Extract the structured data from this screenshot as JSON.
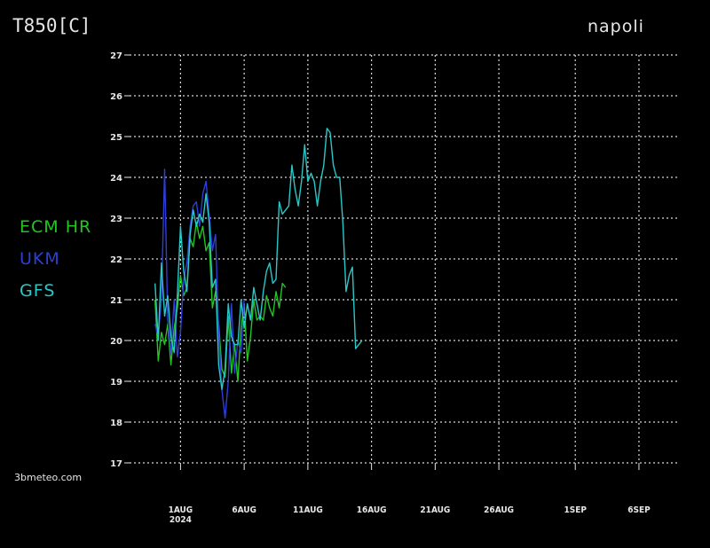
{
  "header": {
    "title": "T850[C]",
    "location": "napoli"
  },
  "credit": "3bmeteo.com",
  "colors": {
    "background": "#000000",
    "ECM HR": "#22c522",
    "UKM": "#2d3fd8",
    "GFS": "#2ac7c7"
  },
  "chart_data": {
    "type": "line",
    "title": "T850[C]",
    "subtitle": "napoli",
    "ylim": [
      17,
      27
    ],
    "yticks": [
      17,
      18,
      19,
      20,
      21,
      22,
      23,
      24,
      25,
      26,
      27
    ],
    "xlim": [
      "2024-07-28",
      "2024-09-09"
    ],
    "xticks": [
      {
        "date": "2024-08-01",
        "label": "1AUG",
        "sublabel": "2024"
      },
      {
        "date": "2024-08-06",
        "label": "6AUG",
        "sublabel": ""
      },
      {
        "date": "2024-08-11",
        "label": "11AUG",
        "sublabel": ""
      },
      {
        "date": "2024-08-16",
        "label": "16AUG",
        "sublabel": ""
      },
      {
        "date": "2024-08-21",
        "label": "21AUG",
        "sublabel": ""
      },
      {
        "date": "2024-08-26",
        "label": "26AUG",
        "sublabel": ""
      },
      {
        "date": "2024-09-01",
        "label": "1SEP",
        "sublabel": ""
      },
      {
        "date": "2024-09-06",
        "label": "6SEP",
        "sublabel": ""
      }
    ],
    "grid": true,
    "legend_position": "left",
    "series": [
      {
        "name": "ECM HR",
        "color": "#22c522",
        "x": [
          "2024-07-30 00:00",
          "2024-07-30 06:00",
          "2024-07-30 12:00",
          "2024-07-30 18:00",
          "2024-07-31 00:00",
          "2024-07-31 06:00",
          "2024-07-31 12:00",
          "2024-07-31 18:00",
          "2024-08-01 00:00",
          "2024-08-01 06:00",
          "2024-08-01 12:00",
          "2024-08-01 18:00",
          "2024-08-02 00:00",
          "2024-08-02 06:00",
          "2024-08-02 12:00",
          "2024-08-02 18:00",
          "2024-08-03 00:00",
          "2024-08-03 06:00",
          "2024-08-03 12:00",
          "2024-08-03 18:00",
          "2024-08-04 00:00",
          "2024-08-04 06:00",
          "2024-08-04 12:00",
          "2024-08-04 18:00",
          "2024-08-05 00:00",
          "2024-08-05 06:00",
          "2024-08-05 12:00",
          "2024-08-05 18:00",
          "2024-08-06 00:00",
          "2024-08-06 06:00",
          "2024-08-06 12:00",
          "2024-08-06 18:00",
          "2024-08-07 00:00",
          "2024-08-07 06:00",
          "2024-08-07 12:00",
          "2024-08-07 18:00",
          "2024-08-08 00:00",
          "2024-08-08 06:00",
          "2024-08-08 12:00",
          "2024-08-08 18:00",
          "2024-08-09 00:00",
          "2024-08-09 06:00"
        ],
        "y": [
          21.0,
          19.5,
          20.2,
          19.9,
          20.4,
          19.4,
          20.3,
          20.8,
          21.6,
          21.1,
          21.3,
          22.5,
          22.3,
          22.9,
          22.5,
          22.8,
          22.2,
          22.4,
          20.8,
          21.2,
          20.4,
          19.3,
          19.1,
          20.6,
          19.2,
          19.9,
          19.0,
          20.3,
          20.9,
          19.5,
          20.1,
          21.0,
          20.5,
          20.6,
          20.5,
          21.1,
          20.8,
          20.6,
          21.2,
          20.8,
          21.4,
          21.3
        ]
      },
      {
        "name": "UKM",
        "color": "#2d3fd8",
        "x": [
          "2024-07-30 00:00",
          "2024-07-30 06:00",
          "2024-07-30 12:00",
          "2024-07-30 18:00",
          "2024-07-31 00:00",
          "2024-07-31 06:00",
          "2024-07-31 12:00",
          "2024-07-31 18:00",
          "2024-08-01 00:00",
          "2024-08-01 06:00",
          "2024-08-01 12:00",
          "2024-08-01 18:00",
          "2024-08-02 00:00",
          "2024-08-02 06:00",
          "2024-08-02 12:00",
          "2024-08-02 18:00",
          "2024-08-03 00:00",
          "2024-08-03 06:00",
          "2024-08-03 12:00",
          "2024-08-03 18:00",
          "2024-08-04 00:00",
          "2024-08-04 06:00",
          "2024-08-04 12:00",
          "2024-08-04 18:00",
          "2024-08-05 00:00",
          "2024-08-05 06:00",
          "2024-08-05 12:00",
          "2024-08-05 18:00",
          "2024-08-06 00:00"
        ],
        "y": [
          20.4,
          20.1,
          21.0,
          24.2,
          20.5,
          19.7,
          21.0,
          19.6,
          20.2,
          21.5,
          21.9,
          22.8,
          23.3,
          23.4,
          22.8,
          23.6,
          23.9,
          23.1,
          22.2,
          22.6,
          20.2,
          18.8,
          18.1,
          19.0,
          20.9,
          19.2,
          20.0,
          19.7,
          21.0
        ]
      },
      {
        "name": "GFS",
        "color": "#2ac7c7",
        "x": [
          "2024-07-30 00:00",
          "2024-07-30 06:00",
          "2024-07-30 12:00",
          "2024-07-30 18:00",
          "2024-07-31 00:00",
          "2024-07-31 06:00",
          "2024-07-31 12:00",
          "2024-07-31 18:00",
          "2024-08-01 00:00",
          "2024-08-01 06:00",
          "2024-08-01 12:00",
          "2024-08-01 18:00",
          "2024-08-02 00:00",
          "2024-08-02 06:00",
          "2024-08-02 12:00",
          "2024-08-02 18:00",
          "2024-08-03 00:00",
          "2024-08-03 06:00",
          "2024-08-03 12:00",
          "2024-08-03 18:00",
          "2024-08-04 00:00",
          "2024-08-04 06:00",
          "2024-08-04 12:00",
          "2024-08-04 18:00",
          "2024-08-05 00:00",
          "2024-08-05 06:00",
          "2024-08-05 12:00",
          "2024-08-05 18:00",
          "2024-08-06 00:00",
          "2024-08-06 06:00",
          "2024-08-06 12:00",
          "2024-08-06 18:00",
          "2024-08-07 00:00",
          "2024-08-07 06:00",
          "2024-08-07 12:00",
          "2024-08-07 18:00",
          "2024-08-08 00:00",
          "2024-08-08 06:00",
          "2024-08-08 12:00",
          "2024-08-08 18:00",
          "2024-08-09 00:00",
          "2024-08-09 06:00",
          "2024-08-09 12:00",
          "2024-08-09 18:00",
          "2024-08-10 00:00",
          "2024-08-10 06:00",
          "2024-08-10 12:00",
          "2024-08-10 18:00",
          "2024-08-11 00:00",
          "2024-08-11 06:00",
          "2024-08-11 12:00",
          "2024-08-11 18:00",
          "2024-08-12 00:00",
          "2024-08-12 06:00",
          "2024-08-12 12:00",
          "2024-08-12 18:00",
          "2024-08-13 00:00",
          "2024-08-13 06:00",
          "2024-08-13 12:00",
          "2024-08-13 18:00",
          "2024-08-14 00:00",
          "2024-08-14 06:00",
          "2024-08-14 12:00",
          "2024-08-14 18:00",
          "2024-08-15 00:00",
          "2024-08-15 06:00"
        ],
        "y": [
          21.4,
          20.0,
          21.9,
          20.6,
          21.1,
          20.1,
          19.7,
          21.1,
          22.8,
          21.7,
          21.2,
          22.6,
          23.2,
          22.8,
          23.1,
          22.9,
          23.6,
          22.9,
          21.3,
          21.5,
          19.4,
          18.8,
          19.3,
          20.9,
          20.1,
          19.9,
          19.9,
          21.0,
          20.3,
          20.9,
          20.5,
          21.3,
          20.9,
          20.5,
          21.2,
          21.7,
          21.9,
          21.4,
          21.5,
          23.4,
          23.1,
          23.2,
          23.3,
          24.3,
          23.7,
          23.3,
          23.9,
          24.8,
          23.9,
          24.1,
          23.9,
          23.3,
          23.9,
          24.3,
          25.2,
          25.1,
          24.3,
          24.0,
          24.0,
          22.9,
          21.2,
          21.6,
          21.8,
          19.8,
          19.9,
          20.0
        ]
      }
    ]
  }
}
